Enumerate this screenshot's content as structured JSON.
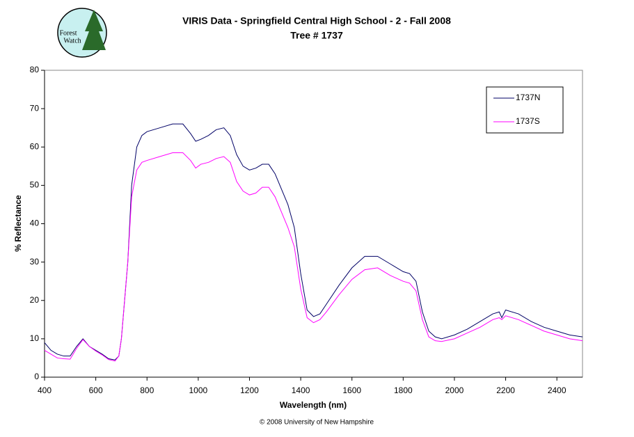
{
  "logo": {
    "lines": [
      "Forest",
      "Watch"
    ]
  },
  "chart_data": {
    "type": "line",
    "title": "VIRIS Data - Springfield Central High School - 2 - Fall 2008",
    "subtitle": "Tree # 1737",
    "x_label": "Wavelength (nm)",
    "y_label": "% Reflectance",
    "footnote": "© 2008 University of New Hampshire",
    "x": [
      400,
      425,
      450,
      475,
      500,
      525,
      550,
      575,
      600,
      625,
      650,
      675,
      690,
      700,
      725,
      740,
      760,
      780,
      800,
      850,
      900,
      940,
      970,
      990,
      1010,
      1040,
      1070,
      1100,
      1125,
      1150,
      1175,
      1200,
      1225,
      1250,
      1275,
      1300,
      1325,
      1350,
      1375,
      1400,
      1425,
      1450,
      1475,
      1500,
      1550,
      1600,
      1650,
      1700,
      1750,
      1800,
      1825,
      1850,
      1875,
      1900,
      1925,
      1950,
      2000,
      2050,
      2100,
      2150,
      2175,
      2185,
      2200,
      2250,
      2300,
      2350,
      2400,
      2450,
      2500
    ],
    "series": [
      {
        "name": "1737N",
        "color": "#000066",
        "values": [
          9,
          7,
          6,
          5.5,
          5.5,
          8,
          10,
          8,
          7,
          6,
          4.8,
          4.5,
          5.5,
          10,
          30,
          50,
          60,
          63,
          64,
          65,
          66,
          66,
          63.5,
          61.5,
          62,
          63,
          64.5,
          65,
          63,
          58,
          55,
          54,
          54.5,
          55.5,
          55.5,
          53,
          49,
          45,
          39,
          27,
          17.5,
          15.8,
          16.5,
          19,
          24,
          28.5,
          31.5,
          31.5,
          29.5,
          27.5,
          27,
          25,
          17,
          12,
          10.5,
          10,
          11,
          12.5,
          14.5,
          16.5,
          17,
          15.5,
          17.5,
          16.5,
          14.5,
          13,
          12,
          11,
          10.5
        ]
      },
      {
        "name": "1737S",
        "color": "#ff00ff",
        "values": [
          7,
          6,
          5,
          4.8,
          4.7,
          7.5,
          9.8,
          8,
          6.8,
          5.8,
          4.6,
          4.2,
          5.5,
          10,
          30,
          47,
          54,
          56,
          56.5,
          57.5,
          58.5,
          58.5,
          56.5,
          54.5,
          55.5,
          56,
          57,
          57.5,
          56,
          51,
          48.5,
          47.5,
          48,
          49.5,
          49.5,
          47,
          43,
          39,
          34,
          23,
          15.5,
          14.2,
          15,
          17,
          21.5,
          25.5,
          28,
          28.5,
          26.5,
          25,
          24.5,
          22.5,
          15,
          10.5,
          9.5,
          9.3,
          10,
          11.5,
          13,
          15,
          15.5,
          15,
          16,
          15,
          13.5,
          12,
          11,
          10,
          9.5
        ]
      }
    ],
    "xlim": [
      400,
      2500
    ],
    "xticks": [
      400,
      600,
      800,
      1000,
      1200,
      1400,
      1600,
      1800,
      2000,
      2200,
      2400
    ],
    "ylim": [
      0,
      80
    ],
    "yticks": [
      0,
      10,
      20,
      30,
      40,
      50,
      60,
      70,
      80
    ],
    "grid": false,
    "legend": "top-right"
  }
}
